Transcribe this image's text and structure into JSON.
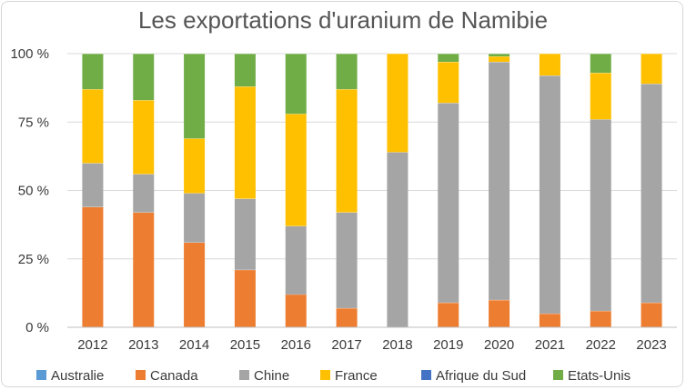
{
  "chart_data": {
    "type": "bar",
    "stacked": true,
    "title": "Les exportations d'uranium de Namibie",
    "categories": [
      "2012",
      "2013",
      "2014",
      "2015",
      "2016",
      "2017",
      "2018",
      "2019",
      "2020",
      "2021",
      "2022",
      "2023"
    ],
    "y_ticks": [
      "0 %",
      "25 %",
      "50 %",
      "75 %",
      "100 %"
    ],
    "ylim": [
      0,
      100
    ],
    "grid": true,
    "legend_position": "bottom",
    "series": [
      {
        "name": "Australie",
        "color": "#5B9BD5",
        "values": [
          0,
          0,
          0,
          0,
          0,
          0,
          0,
          0,
          0,
          0,
          0,
          0
        ]
      },
      {
        "name": "Canada",
        "color": "#ED7D31",
        "values": [
          44,
          42,
          31,
          21,
          12,
          7,
          0,
          9,
          10,
          5,
          6,
          9
        ]
      },
      {
        "name": "Chine",
        "color": "#A5A5A5",
        "values": [
          16,
          14,
          18,
          26,
          25,
          35,
          64,
          73,
          87,
          87,
          70,
          80
        ]
      },
      {
        "name": "France",
        "color": "#FFC000",
        "values": [
          27,
          27,
          20,
          41,
          41,
          45,
          36,
          15,
          2,
          8,
          17,
          11
        ]
      },
      {
        "name": "Afrique du Sud",
        "color": "#4472C4",
        "values": [
          0,
          0,
          0,
          0,
          0,
          0,
          0,
          0,
          0,
          0,
          0,
          0
        ]
      },
      {
        "name": "Etats-Unis",
        "color": "#70AD47",
        "values": [
          13,
          17,
          31,
          12,
          22,
          13,
          0,
          3,
          1,
          0,
          7,
          0
        ]
      }
    ]
  }
}
